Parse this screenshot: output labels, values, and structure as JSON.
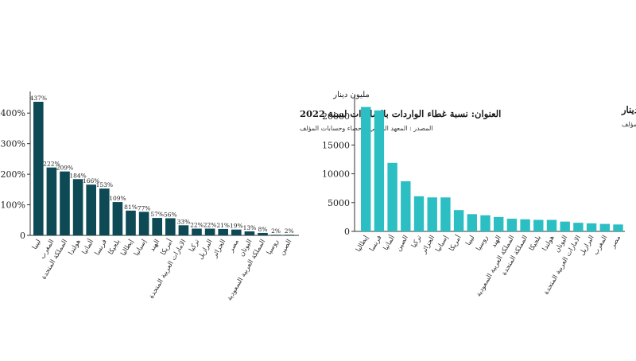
{
  "chart_data": [
    {
      "type": "bar",
      "title": "العنوان: نسبة غطاء الواردات بالصادرات لسنة 2022",
      "subtitle": "المصدر : المعهد الوطني للاحصاء وحسابات المؤلف",
      "categories": [
        "ليبيا",
        "المغرب",
        "المملكة المتحدة",
        "هولندا",
        "ألمانيا",
        "فرنسا",
        "بلجيكا",
        "إيطاليا",
        "إسبانيا",
        "الهند",
        "أمريكا",
        "الامارات العربية المتحدة",
        "تركيا",
        "البرازيل",
        "الجزائر",
        "مصر",
        "اليونان",
        "المملكة العربية السعودية",
        "روسيا",
        "الصين"
      ],
      "values": [
        437,
        222,
        209,
        184,
        166,
        153,
        109,
        81,
        77,
        57,
        56,
        33,
        22,
        22,
        21,
        19,
        13,
        8,
        2,
        2
      ],
      "data_labels": [
        "437%",
        "222%",
        "209%",
        "184%",
        "166%",
        "153%",
        "109%",
        "81%",
        "77%",
        "57%",
        "56%",
        "33%",
        "22%",
        "22%",
        "21%",
        "19%",
        "13%",
        "8%",
        "2%",
        "2%"
      ],
      "yticks": [
        "0",
        "100%",
        "200%",
        "300%",
        "400%"
      ],
      "ytick_values": [
        0,
        100,
        200,
        300,
        400
      ],
      "ylim": [
        0,
        450
      ],
      "xlabel": "",
      "ylabel": "",
      "grid": false,
      "bar_color": "#0d4a55"
    },
    {
      "type": "bar",
      "title": "العنوان : حجم التجارة الخارجية بالمليون دينار",
      "subtitle": "المصدر : المعهد الوطني للاحصاء وحسابات المؤلف",
      "unit_label": "مليون دينار",
      "categories": [
        "إيطاليا",
        "فرنسا",
        "ألمانيا",
        "الصين",
        "تركيا",
        "الجزائر",
        "إسبانيا",
        "أمريكا",
        "ليبيا",
        "روسيا",
        "الهند",
        "المملكة العربية السعودية",
        "المملكة المتحدة",
        "بلجيكا",
        "هولندا",
        "اليونان",
        "الامارات العربية المتحدة",
        "البرازيل",
        "المغرب",
        "مصر"
      ],
      "values": [
        21600,
        21000,
        11900,
        8700,
        6100,
        5900,
        5900,
        3700,
        3000,
        2800,
        2500,
        2200,
        2100,
        2000,
        2000,
        1700,
        1500,
        1400,
        1300,
        1200
      ],
      "yticks": [
        "0",
        "5000",
        "10000",
        "15000",
        "20000"
      ],
      "ytick_values": [
        0,
        5000,
        10000,
        15000,
        20000
      ],
      "ylim": [
        0,
        22500
      ],
      "xlabel": "",
      "ylabel": "",
      "grid": false,
      "bar_color": "#2bbfc4"
    }
  ]
}
